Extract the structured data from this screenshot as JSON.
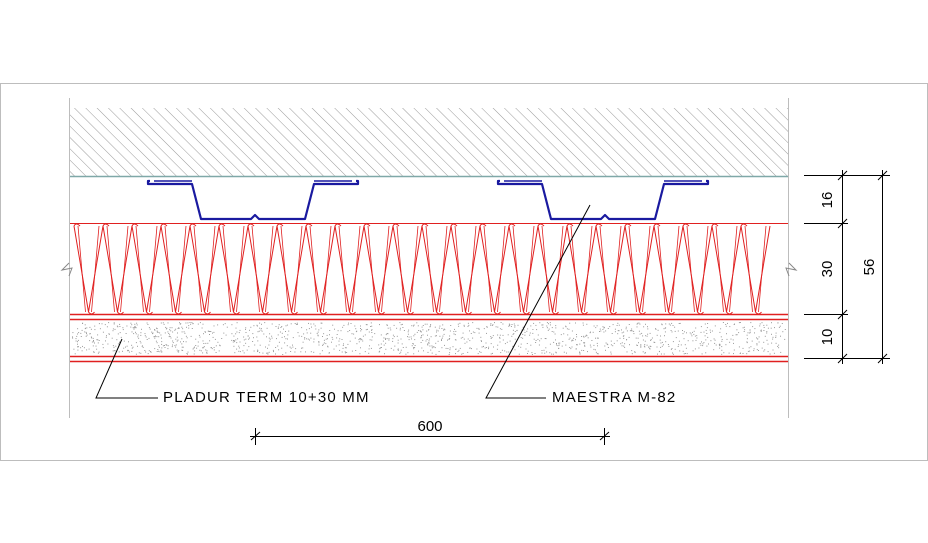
{
  "labels": {
    "material": "PLADUR TERM 10+30 MM",
    "profile": "MAESTRA M-82",
    "spacing": "600"
  },
  "dimensions": {
    "profile_mm": "16",
    "insulation_mm": "30",
    "board_mm": "10",
    "total_mm": "56"
  },
  "colors": {
    "frame": "#bdbdbd",
    "profile": "#1a1aa0",
    "insulation": "#e02020",
    "board_stipple": "#9a9a9a",
    "hatch": "#9a9a9a",
    "text": "#000000"
  }
}
